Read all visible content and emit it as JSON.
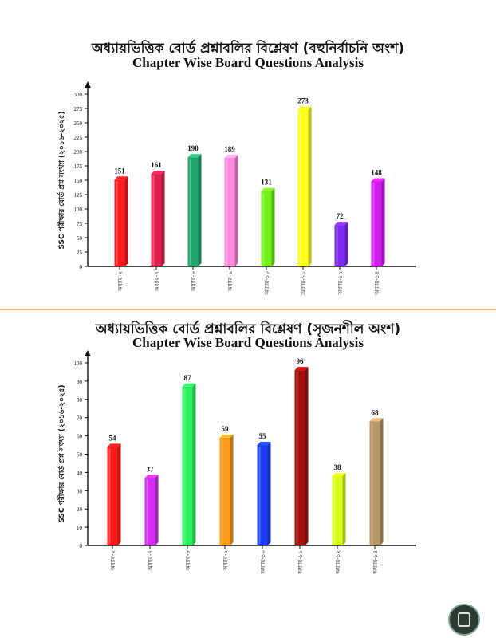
{
  "chart_data": [
    {
      "type": "bar",
      "title_bn": "অধ্যায়ভিত্তিক বোর্ড প্রশ্নাবলির বিশ্লেষণ (বহুনির্বাচনি অংশ)",
      "title": "Chapter Wise Board Questions Analysis",
      "ylabel": "SSC পরীক্ষার বোর্ড প্রশ্ন সংখ্যা (২০১৬-২০২৫)",
      "xlabel": "",
      "ylim": [
        0,
        300
      ],
      "yticks": [
        0,
        25,
        50,
        75,
        100,
        125,
        150,
        175,
        200,
        225,
        250,
        275,
        300
      ],
      "grid": false,
      "categories": [
        "অধ্যায়-২",
        "অধ্যায়-৭",
        "অধ্যায়-৮",
        "অধ্যায়-৯",
        "অধ্যায়-১০",
        "অধ্যায়-১১",
        "অধ্যায়-১২",
        "অধ্যায়-১৪"
      ],
      "values": [
        151,
        161,
        190,
        189,
        131,
        273,
        72,
        148
      ],
      "colors": [
        "#ff1b1b",
        "#e0204e",
        "#21a66c",
        "#ff8be0",
        "#6ff01b",
        "#ffff1f",
        "#7b2cf0",
        "#d21bef"
      ]
    },
    {
      "type": "bar",
      "title_bn": "অধ্যায়ভিত্তিক বোর্ড প্রশ্নাবলির বিশ্লেষণ (সৃজনশীল অংশ)",
      "title": "Chapter Wise Board Questions Analysis",
      "ylabel": "SSC পরীক্ষার বোর্ড প্রশ্ন সংখ্যা (২০১৬-২০২৫)",
      "xlabel": "",
      "ylim": [
        0,
        100
      ],
      "yticks": [
        0,
        10,
        20,
        30,
        40,
        50,
        60,
        70,
        80,
        90,
        100
      ],
      "grid": false,
      "categories": [
        "অধ্যায়-২",
        "অধ্যায়-৭",
        "অধ্যায়-৮",
        "অধ্যায়-৯",
        "অধ্যায়-১০",
        "অধ্যায়-১১",
        "অধ্যায়-১২",
        "অধ্যায়-১৪"
      ],
      "values": [
        54,
        37,
        87,
        59,
        55,
        96,
        38,
        68
      ],
      "colors": [
        "#ff1b1b",
        "#d12ef2",
        "#2cf05b",
        "#ff9a1b",
        "#1b3ff0",
        "#a80d0d",
        "#d7ff1b",
        "#b89668"
      ]
    }
  ]
}
